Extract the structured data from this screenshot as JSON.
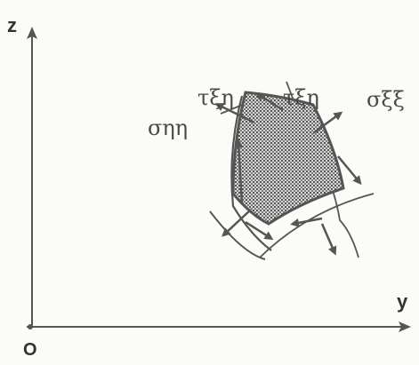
{
  "axes": {
    "z_label": "z",
    "y_label": "y",
    "origin_label": "O"
  },
  "stresses": {
    "tau_left": "τξη",
    "tau_right": "τξη",
    "sigma_eta": "σηη",
    "sigma_xi": "σξξ"
  },
  "colors": {
    "line": "#555555",
    "text": "#4a4a4a"
  }
}
